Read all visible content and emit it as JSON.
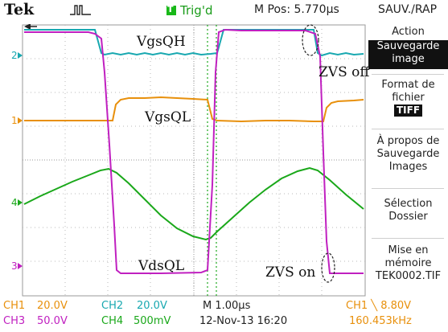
{
  "header": {
    "brand": "Tek",
    "trigger_status": "Trig'd",
    "position": "M Pos: 5.770µs",
    "trigger_color": "#18b818"
  },
  "menu": {
    "title": "SAUV./RAP",
    "action_label": "Action",
    "action_value_line1": "Sauvegarde",
    "action_value_line2": "image",
    "format_line1": "Format de",
    "format_line2": "fichier",
    "format_value": "TIFF",
    "about_line1": "À propos de",
    "about_line2": "Sauvegarde",
    "about_line3": "Images",
    "select_line1": "Sélection",
    "select_line2": "Dossier",
    "save_line1": "Mise en",
    "save_line2": "mémoire",
    "save_file": "TEK0002.TIF"
  },
  "waveform_labels": {
    "vgsqh": "VgsQH",
    "vgsql": "VgsQL",
    "vdsql": "VdsQL",
    "zvs_off": "ZVS off",
    "zvs_on": "ZVS on"
  },
  "channel_markers": {
    "ch1": "1",
    "ch2": "2",
    "ch3": "3",
    "ch4": "4"
  },
  "status": {
    "ch1": "CH1",
    "ch1_scale": "20.0V",
    "ch2": "CH2",
    "ch2_scale": "20.0V",
    "timebase": "M 1.00µs",
    "trigger": "CH1 ╲ 8.80V",
    "ch3": "CH3",
    "ch3_scale": "50.0V",
    "ch4": "CH4",
    "ch4_scale": "500mV",
    "datetime": "12-Nov-13 16:20",
    "frequency": "160.453kHz"
  },
  "colors": {
    "ch1": "#e8900c",
    "ch2": "#18a8b0",
    "ch3": "#c020c0",
    "ch4": "#1aa81a",
    "cursor": "#1aa81a"
  }
}
